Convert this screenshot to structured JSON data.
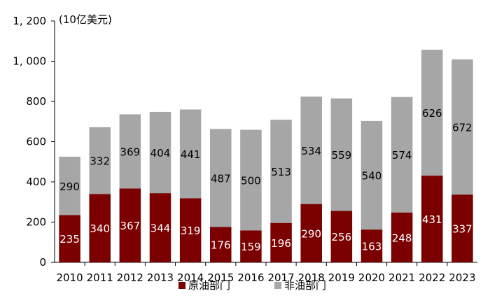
{
  "chart_data": {
    "type": "bar",
    "stacked": true,
    "unit_label": "(10亿美元)",
    "categories": [
      "2010",
      "2011",
      "2012",
      "2013",
      "2014",
      "2015",
      "2016",
      "2017",
      "2018",
      "2019",
      "2020",
      "2021",
      "2022",
      "2023"
    ],
    "series": [
      {
        "name": "原油部门",
        "color": "#7b0000",
        "label_color": "#ffffff",
        "values": [
          235,
          340,
          367,
          344,
          319,
          176,
          159,
          196,
          290,
          256,
          163,
          248,
          431,
          337
        ]
      },
      {
        "name": "非油部门",
        "color": "#a6a6a6",
        "label_color": "#000000",
        "values": [
          290,
          332,
          369,
          404,
          441,
          487,
          500,
          513,
          534,
          559,
          540,
          574,
          626,
          672
        ]
      }
    ],
    "ylim": [
      0,
      1200
    ],
    "yticks": [
      0,
      200,
      400,
      600,
      800,
      1000,
      1200
    ],
    "ytick_labels": [
      "0",
      "200",
      "400",
      "600",
      "800",
      "1, 000",
      "1, 200"
    ],
    "grid": false,
    "legend_position": "bottom"
  }
}
